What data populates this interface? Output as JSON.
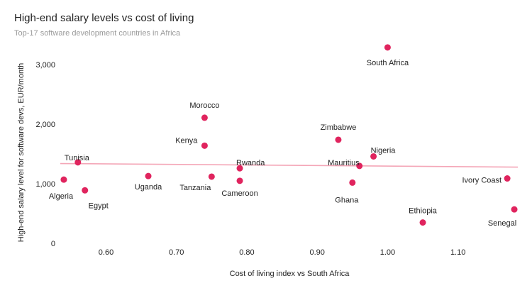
{
  "chart_data": {
    "type": "scatter",
    "title": "High-end salary levels vs cost of living",
    "subtitle": "Top-17 software development countries in Africa",
    "xlabel": "Cost of living index vs South Africa",
    "ylabel": "High-end salary level for software devs, EUR/month",
    "xlim": [
      0.535,
      1.185
    ],
    "ylim": [
      0,
      3300
    ],
    "x_ticks": [
      0.6,
      0.7,
      0.8,
      0.9,
      1.0,
      1.1
    ],
    "x_tick_labels": [
      "0.60",
      "0.70",
      "0.80",
      "0.90",
      "1.00",
      "1.10"
    ],
    "y_ticks": [
      0,
      1000,
      2000,
      3000
    ],
    "y_tick_labels": [
      "0",
      "1,000",
      "2,000",
      "3,000"
    ],
    "grid": false,
    "point_color": "#e0245e",
    "trendline_color": "#f4a6b7",
    "trendline": [
      {
        "x": 0.535,
        "y": 1340
      },
      {
        "x": 1.185,
        "y": 1280
      }
    ],
    "points": [
      {
        "name": "South Africa",
        "x": 1.0,
        "y": 3290
      },
      {
        "name": "Morocco",
        "x": 0.74,
        "y": 2110
      },
      {
        "name": "Zimbabwe",
        "x": 0.93,
        "y": 1740
      },
      {
        "name": "Kenya",
        "x": 0.74,
        "y": 1640
      },
      {
        "name": "Nigeria",
        "x": 0.98,
        "y": 1460
      },
      {
        "name": "Tunisia",
        "x": 0.56,
        "y": 1360
      },
      {
        "name": "Mauritius",
        "x": 0.96,
        "y": 1300
      },
      {
        "name": "Rwanda",
        "x": 0.79,
        "y": 1260
      },
      {
        "name": "Uganda",
        "x": 0.66,
        "y": 1130
      },
      {
        "name": "Tanzania",
        "x": 0.75,
        "y": 1120
      },
      {
        "name": "Ivory Coast",
        "x": 1.17,
        "y": 1090
      },
      {
        "name": "Algeria",
        "x": 0.54,
        "y": 1070
      },
      {
        "name": "Cameroon",
        "x": 0.79,
        "y": 1050
      },
      {
        "name": "Ghana",
        "x": 0.95,
        "y": 1020
      },
      {
        "name": "Egypt",
        "x": 0.57,
        "y": 890
      },
      {
        "name": "Senegal",
        "x": 1.18,
        "y": 570
      },
      {
        "name": "Ethiopia",
        "x": 1.05,
        "y": 350
      }
    ]
  }
}
